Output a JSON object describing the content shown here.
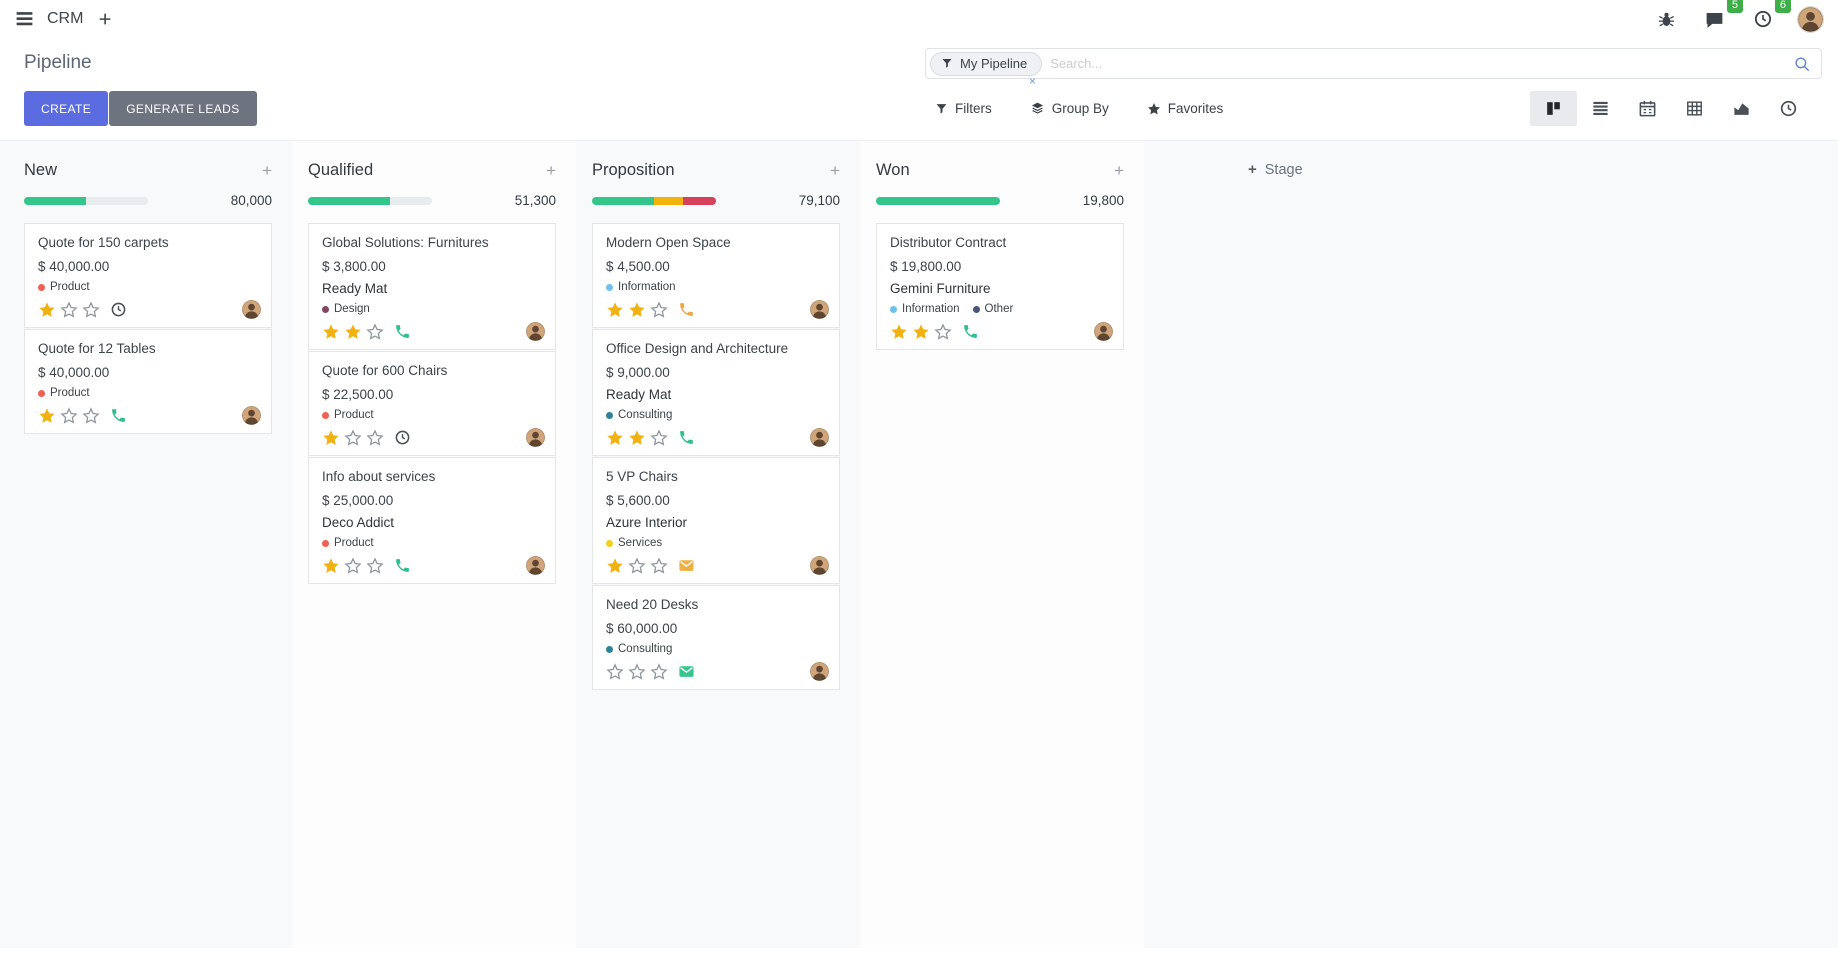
{
  "navbar": {
    "app_name": "CRM",
    "messages_badge": "5",
    "activities_badge": "6",
    "badge_color": "#3fae4a"
  },
  "control_panel": {
    "title": "Pipeline",
    "buttons": {
      "create": "CREATE",
      "generate_leads": "GENERATE LEADS"
    },
    "search": {
      "facet_label": "My Pipeline",
      "placeholder": "Search...",
      "remove_facet": "×"
    },
    "menus": {
      "filters": "Filters",
      "group_by": "Group By",
      "favorites": "Favorites"
    },
    "accent_color": "#5a6ce0"
  },
  "kanban": {
    "add_stage_label": "Stage",
    "progress_track_color": "#e9ecef",
    "columns": [
      {
        "name": "New",
        "total": "80,000",
        "progress": [
          {
            "color": "#33c589",
            "pct": 50
          }
        ],
        "cards": [
          {
            "title": "Quote for 150 carpets",
            "amount": "$ 40,000.00",
            "partner": "",
            "tags": [
              {
                "label": "Product",
                "color": "#f06050"
              }
            ],
            "stars": 1,
            "activity": {
              "icon": "clock",
              "color": "#495057"
            }
          },
          {
            "title": "Quote for 12 Tables",
            "amount": "$ 40,000.00",
            "partner": "",
            "tags": [
              {
                "label": "Product",
                "color": "#f06050"
              }
            ],
            "stars": 1,
            "activity": {
              "icon": "phone",
              "color": "#2fc18c"
            }
          }
        ]
      },
      {
        "name": "Qualified",
        "total": "51,300",
        "progress": [
          {
            "color": "#33c589",
            "pct": 66
          }
        ],
        "cards": [
          {
            "title": "Global Solutions: Furnitures",
            "amount": "$ 3,800.00",
            "partner": "Ready Mat",
            "tags": [
              {
                "label": "Design",
                "color": "#814968"
              }
            ],
            "stars": 2,
            "activity": {
              "icon": "phone",
              "color": "#2fc18c"
            }
          },
          {
            "title": "Quote for 600 Chairs",
            "amount": "$ 22,500.00",
            "partner": "",
            "tags": [
              {
                "label": "Product",
                "color": "#f06050"
              }
            ],
            "stars": 1,
            "activity": {
              "icon": "clock",
              "color": "#495057"
            }
          },
          {
            "title": "Info about services",
            "amount": "$ 25,000.00",
            "partner": "Deco Addict",
            "tags": [
              {
                "label": "Product",
                "color": "#f06050"
              }
            ],
            "stars": 1,
            "activity": {
              "icon": "phone",
              "color": "#2fc18c"
            }
          }
        ]
      },
      {
        "name": "Proposition",
        "total": "79,100",
        "progress": [
          {
            "color": "#33c589",
            "pct": 50
          },
          {
            "color": "#f2b20c",
            "pct": 23
          },
          {
            "color": "#d5405b",
            "pct": 27
          }
        ],
        "cards": [
          {
            "title": "Modern Open Space",
            "amount": "$ 4,500.00",
            "partner": "",
            "tags": [
              {
                "label": "Information",
                "color": "#6cc1ed"
              }
            ],
            "stars": 2,
            "activity": {
              "icon": "phone",
              "color": "#efa64b"
            }
          },
          {
            "title": "Office Design and Architecture",
            "amount": "$ 9,000.00",
            "partner": "Ready Mat",
            "tags": [
              {
                "label": "Consulting",
                "color": "#2c8397"
              }
            ],
            "stars": 2,
            "activity": {
              "icon": "phone",
              "color": "#2fc18c"
            }
          },
          {
            "title": "5 VP Chairs",
            "amount": "$ 5,600.00",
            "partner": "Azure Interior",
            "tags": [
              {
                "label": "Services",
                "color": "#f7cd1f"
              }
            ],
            "stars": 1,
            "activity": {
              "icon": "envelope",
              "color": "#eeb044"
            }
          },
          {
            "title": "Need 20 Desks",
            "amount": "$ 60,000.00",
            "partner": "",
            "tags": [
              {
                "label": "Consulting",
                "color": "#2c8397"
              }
            ],
            "stars": 0,
            "activity": {
              "icon": "envelope",
              "color": "#35c690"
            }
          }
        ]
      },
      {
        "name": "Won",
        "total": "19,800",
        "progress": [
          {
            "color": "#33c589",
            "pct": 100
          }
        ],
        "cards": [
          {
            "title": "Distributor Contract",
            "amount": "$ 19,800.00",
            "partner": "Gemini Furniture",
            "tags": [
              {
                "label": "Information",
                "color": "#6cc1ed"
              },
              {
                "label": "Other",
                "color": "#475577"
              }
            ],
            "stars": 2,
            "activity": {
              "icon": "phone",
              "color": "#2fc18c"
            }
          }
        ]
      }
    ]
  }
}
